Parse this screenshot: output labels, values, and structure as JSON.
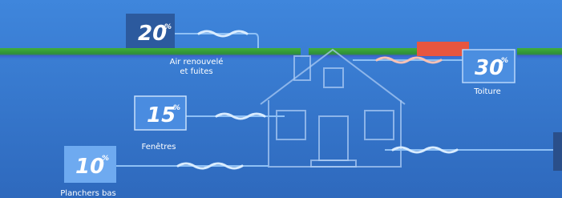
{
  "callouts": [
    {
      "value": 20,
      "unit": "%",
      "label": [
        "Air renouvelé",
        "et fuites"
      ]
    },
    {
      "value": 30,
      "unit": "%",
      "label": [
        "Toiture"
      ]
    },
    {
      "value": 15,
      "unit": "%",
      "label": [
        "Fenêtres"
      ]
    },
    {
      "value": 10,
      "unit": "%",
      "label": [
        "Planchers bas"
      ]
    }
  ]
}
